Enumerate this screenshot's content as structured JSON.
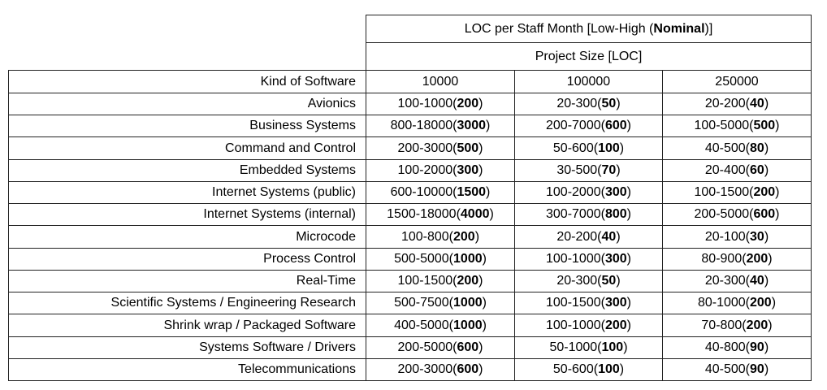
{
  "header": {
    "title": [
      "LOC per Staff Month [Low-High (",
      "Nominal",
      ")]"
    ],
    "subtitle": "Project Size [LOC]"
  },
  "table": {
    "columns": [
      "Kind of Software",
      "10000",
      "100000",
      "250000"
    ],
    "rows": [
      [
        "Avionics",
        [
          "100-1000(",
          "200",
          ")"
        ],
        [
          "20-300(",
          "50",
          ")"
        ],
        [
          "20-200(",
          "40",
          ")"
        ]
      ],
      [
        "Business Systems",
        [
          "800-18000(",
          "3000",
          ")"
        ],
        [
          "200-7000(",
          "600",
          ")"
        ],
        [
          "100-5000(",
          "500",
          ")"
        ]
      ],
      [
        "Command and Control",
        [
          "200-3000(",
          "500",
          ")"
        ],
        [
          "50-600(",
          "100",
          ")"
        ],
        [
          "40-500(",
          "80",
          ")"
        ]
      ],
      [
        "Embedded Systems",
        [
          "100-2000(",
          "300",
          ")"
        ],
        [
          "30-500(",
          "70",
          ")"
        ],
        [
          "20-400(",
          "60",
          ")"
        ]
      ],
      [
        "Internet Systems (public)",
        [
          "600-10000(",
          "1500",
          ")"
        ],
        [
          "100-2000(",
          "300",
          ")"
        ],
        [
          "100-1500(",
          "200",
          ")"
        ]
      ],
      [
        "Internet Systems (internal)",
        [
          "1500-18000(",
          "4000",
          ")"
        ],
        [
          "300-7000(",
          "800",
          ")"
        ],
        [
          "200-5000(",
          "600",
          ")"
        ]
      ],
      [
        "Microcode",
        [
          "100-800(",
          "200",
          ")"
        ],
        [
          "20-200(",
          "40",
          ")"
        ],
        [
          "20-100(",
          "30",
          ")"
        ]
      ],
      [
        "Process Control",
        [
          "500-5000(",
          "1000",
          ")"
        ],
        [
          "100-1000(",
          "300",
          ")"
        ],
        [
          "80-900(",
          "200",
          ")"
        ]
      ],
      [
        "Real-Time",
        [
          "100-1500(",
          "200",
          ")"
        ],
        [
          "20-300(",
          "50",
          ")"
        ],
        [
          "20-300(",
          "40",
          ")"
        ]
      ],
      [
        "Scientific Systems / Engineering Research",
        [
          "500-7500(",
          "1000",
          ")"
        ],
        [
          "100-1500(",
          "300",
          ")"
        ],
        [
          "80-1000(",
          "200",
          ")"
        ]
      ],
      [
        "Shrink wrap / Packaged Software",
        [
          "400-5000(",
          "1000",
          ")"
        ],
        [
          "100-1000(",
          "200",
          ")"
        ],
        [
          "70-800(",
          "200",
          ")"
        ]
      ],
      [
        "Systems Software / Drivers",
        [
          "200-5000(",
          "600",
          ")"
        ],
        [
          "50-1000(",
          "100",
          ")"
        ],
        [
          "40-800(",
          "90",
          ")"
        ]
      ],
      [
        "Telecommunications",
        [
          "200-3000(",
          "600",
          ")"
        ],
        [
          "50-600(",
          "100",
          ")"
        ],
        [
          "40-500(",
          "90",
          ")"
        ]
      ]
    ]
  }
}
